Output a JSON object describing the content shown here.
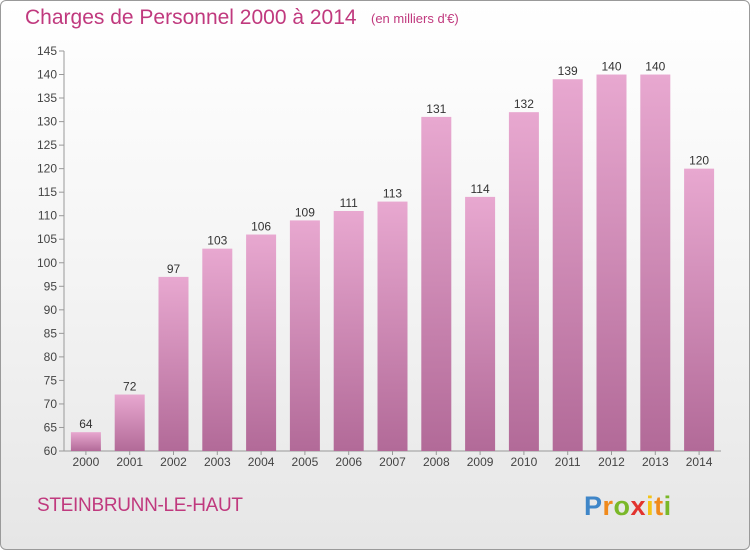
{
  "header": {
    "title": "Charges de Personnel 2000 à 2014",
    "unit": "(en milliers d'€)"
  },
  "footer": {
    "commune": "STEINBRUNN-LE-HAUT",
    "logo_letters": [
      "P",
      "r",
      "o",
      "x",
      "i",
      "t",
      "i"
    ]
  },
  "colors": {
    "bar_light": "#e8a8d0",
    "bar_dark": "#b26a98",
    "title": "#c0397e",
    "axis": "#999999"
  },
  "chart_data": {
    "type": "bar",
    "title": "Charges de Personnel 2000 à 2014",
    "subtitle": "(en milliers d'€)",
    "categories": [
      "2000",
      "2001",
      "2002",
      "2003",
      "2004",
      "2005",
      "2006",
      "2007",
      "2008",
      "2009",
      "2010",
      "2011",
      "2012",
      "2013",
      "2014"
    ],
    "values": [
      64,
      72,
      97,
      103,
      106,
      109,
      111,
      113,
      131,
      114,
      132,
      139,
      140,
      140,
      120
    ],
    "ylim": [
      60,
      145
    ],
    "yticks": [
      60,
      65,
      70,
      75,
      80,
      85,
      90,
      95,
      100,
      105,
      110,
      115,
      120,
      125,
      130,
      135,
      140,
      145
    ],
    "grid": false,
    "data_labels": true
  }
}
